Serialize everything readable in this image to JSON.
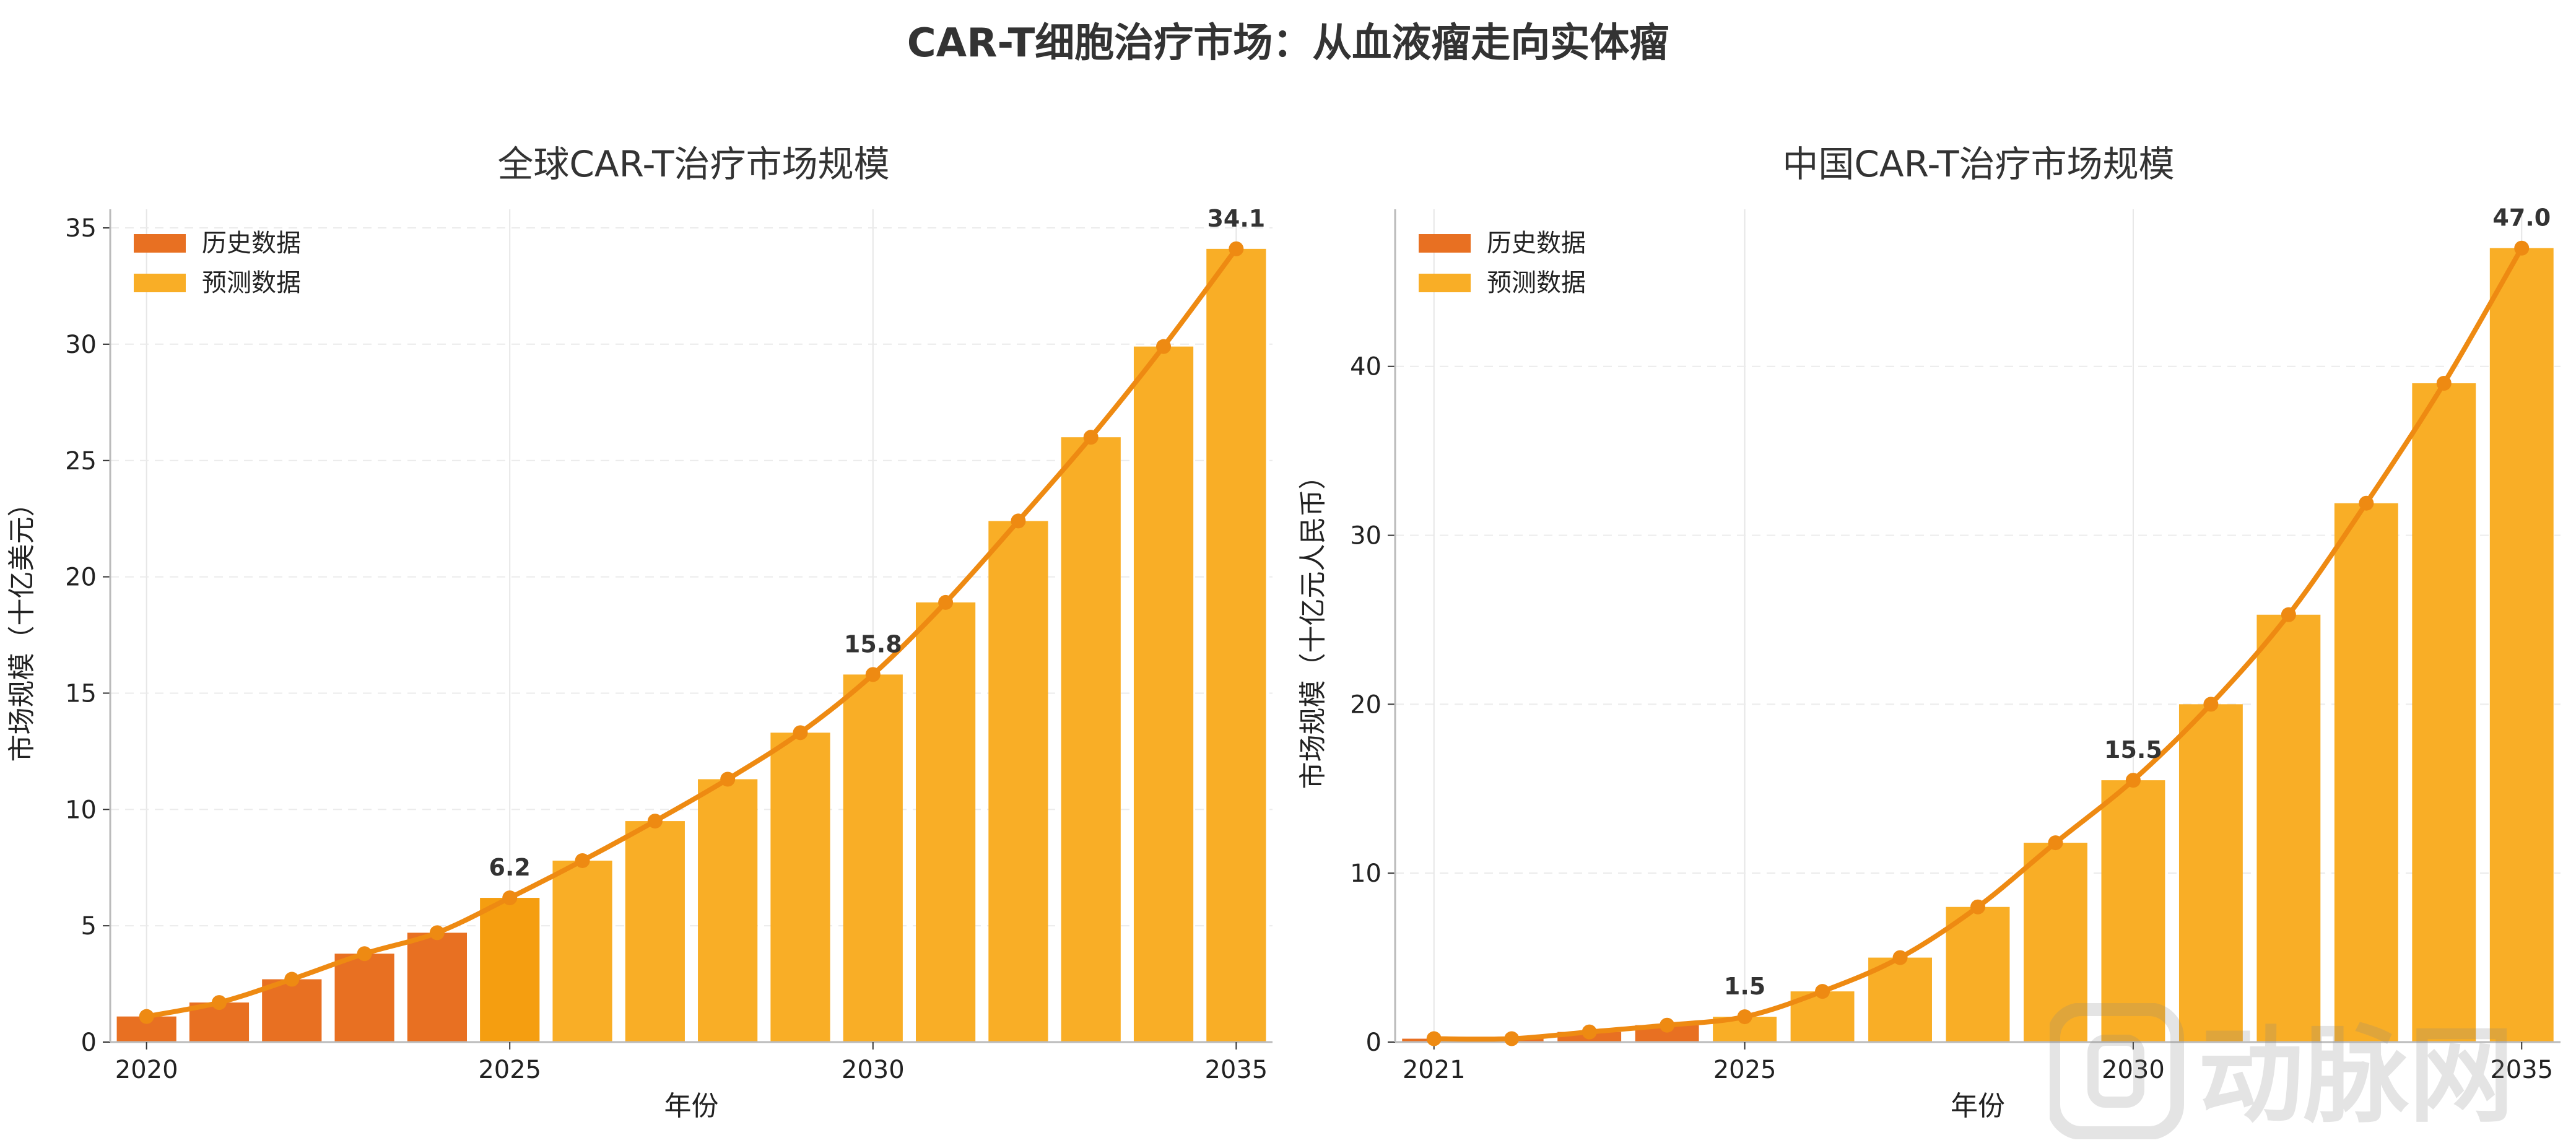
{
  "title": "CAR-T细胞治疗市场：从血液瘤走向实体瘤",
  "watermark_text": "动脉网",
  "colors": {
    "historical": "#E87022",
    "forecast": "#F9AE26",
    "line": "#EE8A12",
    "axis": "#bbbbbb"
  },
  "chart_data": [
    {
      "type": "bar",
      "title": "全球CAR-T治疗市场规模",
      "xlabel": "年份",
      "ylabel": "市场规模（十亿美元）",
      "legend": [
        "历史数据",
        "预测数据"
      ],
      "legend_position": "top-left",
      "x": [
        2020,
        2021,
        2022,
        2023,
        2024,
        2025,
        2026,
        2027,
        2028,
        2029,
        2030,
        2031,
        2032,
        2033,
        2034,
        2035
      ],
      "values": [
        1.1,
        1.7,
        2.7,
        3.8,
        4.7,
        6.2,
        7.8,
        9.5,
        11.3,
        13.3,
        15.8,
        18.9,
        22.4,
        26.0,
        29.9,
        34.1
      ],
      "historical_until": 2024,
      "xticks": [
        2020,
        2025,
        2030,
        2035
      ],
      "yticks": [
        0,
        5,
        10,
        15,
        20,
        25,
        30,
        35
      ],
      "ylim": [
        0,
        35.8
      ],
      "annotations": [
        {
          "x": 2025,
          "label": "6.2"
        },
        {
          "x": 2030,
          "label": "15.8"
        },
        {
          "x": 2035,
          "label": "34.1"
        }
      ],
      "grid": true
    },
    {
      "type": "bar",
      "title": "中国CAR-T治疗市场规模",
      "xlabel": "年份",
      "ylabel": "市场规模（十亿元人民币）",
      "legend": [
        "历史数据",
        "预测数据"
      ],
      "legend_position": "top-left",
      "x": [
        2021,
        2022,
        2023,
        2024,
        2025,
        2026,
        2027,
        2028,
        2029,
        2030,
        2031,
        2032,
        2033,
        2034,
        2035
      ],
      "values": [
        0.2,
        0.2,
        0.6,
        1.0,
        1.5,
        3.0,
        5.0,
        8.0,
        11.8,
        15.5,
        20.0,
        25.3,
        31.9,
        39.0,
        47.0
      ],
      "historical_until": 2024,
      "xticks": [
        2021,
        2025,
        2030,
        2035
      ],
      "yticks": [
        0,
        10,
        20,
        30,
        40
      ],
      "ylim": [
        0,
        49.3
      ],
      "annotations": [
        {
          "x": 2025,
          "label": "1.5"
        },
        {
          "x": 2030,
          "label": "15.5"
        },
        {
          "x": 2035,
          "label": "47.0"
        }
      ],
      "grid": true
    }
  ]
}
